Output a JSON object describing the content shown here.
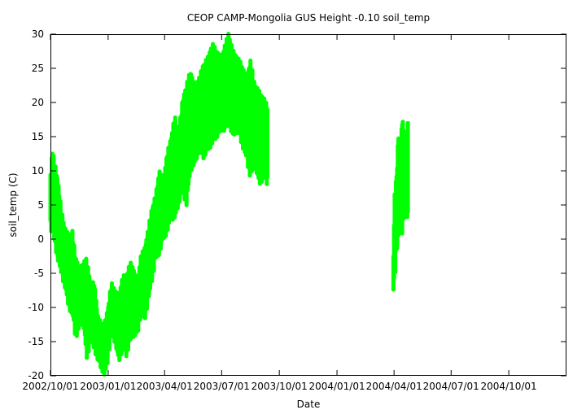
{
  "chart_data": {
    "type": "scatter",
    "title": "CEOP CAMP-Mongolia GUS Height -0.10 soil_temp",
    "xlabel": "Date",
    "ylabel": "soil_temp (C)",
    "ylim": [
      -20,
      30
    ],
    "xlim": [
      "2002/10/01",
      "2005/01/01"
    ],
    "grid": false,
    "legend": "none",
    "marker_color": "#00ff00",
    "y_ticks": [
      {
        "value": -20,
        "label": "-20"
      },
      {
        "value": -15,
        "label": "-15"
      },
      {
        "value": -10,
        "label": "-10"
      },
      {
        "value": -5,
        "label": "-5"
      },
      {
        "value": 0,
        "label": "0"
      },
      {
        "value": 5,
        "label": "5"
      },
      {
        "value": 10,
        "label": "10"
      },
      {
        "value": 15,
        "label": "15"
      },
      {
        "value": 20,
        "label": "20"
      },
      {
        "value": 25,
        "label": "25"
      },
      {
        "value": 30,
        "label": "30"
      }
    ],
    "x_ticks": [
      {
        "value": "2002/10/01",
        "label": "2002/10/01"
      },
      {
        "value": "2003/01/01",
        "label": "2003/01/01"
      },
      {
        "value": "2003/04/01",
        "label": "2003/04/01"
      },
      {
        "value": "2003/07/01",
        "label": "2003/07/01"
      },
      {
        "value": "2003/10/01",
        "label": "2003/10/01"
      },
      {
        "value": "2004/01/01",
        "label": "2004/01/01"
      },
      {
        "value": "2004/04/01",
        "label": "2004/04/01"
      },
      {
        "value": "2004/07/01",
        "label": "2004/07/01"
      },
      {
        "value": "2004/10/01",
        "label": "2004/10/01"
      }
    ],
    "series": [
      {
        "name": "soil_temp",
        "description": "daily min/max envelope of the scattered soil temperature observations",
        "points": [
          {
            "date": "2002/10/01",
            "min": 2,
            "max": 9
          },
          {
            "date": "2002/10/04",
            "min": 3,
            "max": 12.5
          },
          {
            "date": "2002/10/08",
            "min": 0,
            "max": 10.5
          },
          {
            "date": "2002/10/13",
            "min": -2,
            "max": 8
          },
          {
            "date": "2002/10/18",
            "min": -4,
            "max": 4
          },
          {
            "date": "2002/10/24",
            "min": -6,
            "max": 1
          },
          {
            "date": "2002/10/30",
            "min": -9,
            "max": 0
          },
          {
            "date": "2002/11/05",
            "min": -10,
            "max": 0.5
          },
          {
            "date": "2002/11/10",
            "min": -13.5,
            "max": -3
          },
          {
            "date": "2002/11/16",
            "min": -12,
            "max": -5
          },
          {
            "date": "2002/11/22",
            "min": -11,
            "max": -4
          },
          {
            "date": "2002/11/28",
            "min": -16.5,
            "max": -3.5
          },
          {
            "date": "2002/12/04",
            "min": -14,
            "max": -7
          },
          {
            "date": "2002/12/10",
            "min": -15,
            "max": -7
          },
          {
            "date": "2002/12/16",
            "min": -17,
            "max": -12
          },
          {
            "date": "2002/12/22",
            "min": -18,
            "max": -13
          },
          {
            "date": "2002/12/26",
            "min": -19,
            "max": -13
          },
          {
            "date": "2002/12/31",
            "min": -17,
            "max": -11
          },
          {
            "date": "2003/01/06",
            "min": -13,
            "max": -7
          },
          {
            "date": "2003/01/12",
            "min": -14,
            "max": -8
          },
          {
            "date": "2003/01/18",
            "min": -17,
            "max": -9
          },
          {
            "date": "2003/01/24",
            "min": -15,
            "max": -6
          },
          {
            "date": "2003/01/30",
            "min": -16,
            "max": -6
          },
          {
            "date": "2003/02/05",
            "min": -14,
            "max": -4
          },
          {
            "date": "2003/02/11",
            "min": -13,
            "max": -5
          },
          {
            "date": "2003/02/17",
            "min": -13,
            "max": -7
          },
          {
            "date": "2003/02/22",
            "min": -10,
            "max": -3
          },
          {
            "date": "2003/02/28",
            "min": -11,
            "max": -2
          },
          {
            "date": "2003/03/06",
            "min": -8,
            "max": 1
          },
          {
            "date": "2003/03/12",
            "min": -5,
            "max": 4
          },
          {
            "date": "2003/03/18",
            "min": -2,
            "max": 6
          },
          {
            "date": "2003/03/24",
            "min": -1,
            "max": 9.5
          },
          {
            "date": "2003/03/30",
            "min": 1,
            "max": 8
          },
          {
            "date": "2003/04/05",
            "min": 2,
            "max": 12
          },
          {
            "date": "2003/04/11",
            "min": 4,
            "max": 14
          },
          {
            "date": "2003/04/17",
            "min": 4,
            "max": 17.5
          },
          {
            "date": "2003/04/23",
            "min": 6,
            "max": 15
          },
          {
            "date": "2003/04/30",
            "min": 8,
            "max": 20
          },
          {
            "date": "2003/05/06",
            "min": 6,
            "max": 22
          },
          {
            "date": "2003/05/12",
            "min": 11,
            "max": 24
          },
          {
            "date": "2003/05/19",
            "min": 12,
            "max": 22
          },
          {
            "date": "2003/05/26",
            "min": 14,
            "max": 23
          },
          {
            "date": "2003/06/02",
            "min": 13,
            "max": 25
          },
          {
            "date": "2003/06/09",
            "min": 14,
            "max": 26
          },
          {
            "date": "2003/06/16",
            "min": 15,
            "max": 28
          },
          {
            "date": "2003/06/23",
            "min": 16,
            "max": 27
          },
          {
            "date": "2003/06/30",
            "min": 17,
            "max": 26
          },
          {
            "date": "2003/07/07",
            "min": 17,
            "max": 28
          },
          {
            "date": "2003/07/12",
            "min": 18,
            "max": 29.5
          },
          {
            "date": "2003/07/19",
            "min": 16,
            "max": 27
          },
          {
            "date": "2003/07/26",
            "min": 17,
            "max": 26
          },
          {
            "date": "2003/08/02",
            "min": 15,
            "max": 25
          },
          {
            "date": "2003/08/09",
            "min": 13,
            "max": 23
          },
          {
            "date": "2003/08/16",
            "min": 10,
            "max": 25.5
          },
          {
            "date": "2003/08/23",
            "min": 12,
            "max": 22
          },
          {
            "date": "2003/08/30",
            "min": 9,
            "max": 21
          },
          {
            "date": "2003/09/06",
            "min": 10,
            "max": 20
          },
          {
            "date": "2003/09/12",
            "min": 9,
            "max": 19
          }
        ],
        "points_2004": [
          {
            "date": "2004/03/31",
            "min": -6.5,
            "max": -2
          },
          {
            "date": "2004/04/02",
            "min": -5,
            "max": 6
          },
          {
            "date": "2004/04/05",
            "min": -1,
            "max": 9
          },
          {
            "date": "2004/04/08",
            "min": 1,
            "max": 15
          },
          {
            "date": "2004/04/11",
            "min": 3,
            "max": 12
          },
          {
            "date": "2004/04/14",
            "min": 2,
            "max": 17.5
          },
          {
            "date": "2004/04/17",
            "min": 4,
            "max": 15
          },
          {
            "date": "2004/04/20",
            "min": 5,
            "max": 14
          },
          {
            "date": "2004/04/23",
            "min": 4,
            "max": 17
          }
        ]
      }
    ]
  }
}
